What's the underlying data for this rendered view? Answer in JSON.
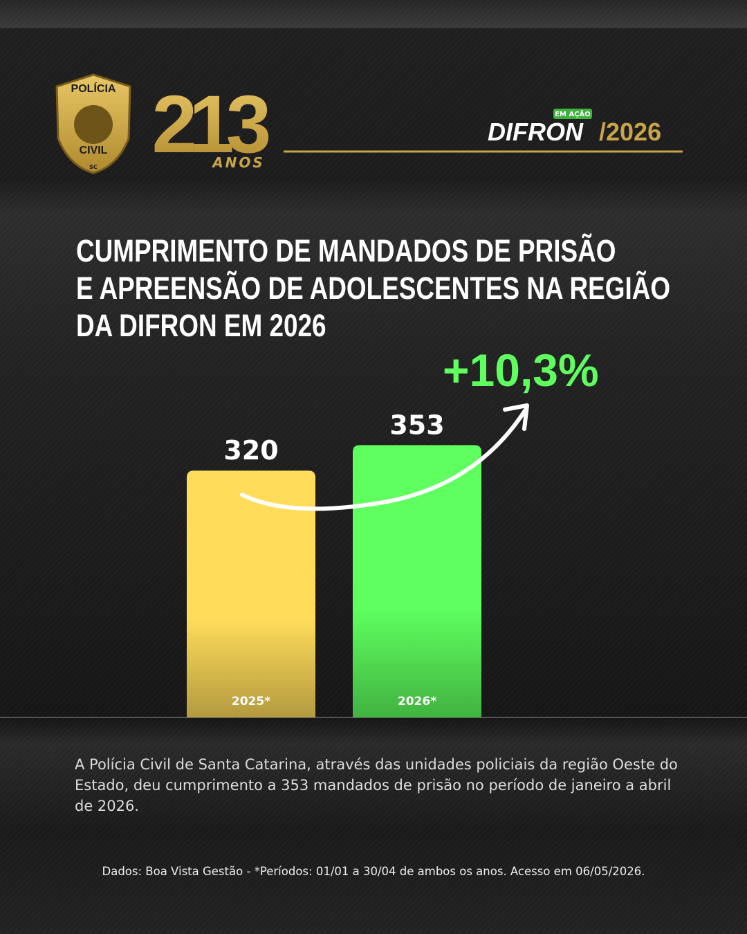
{
  "header": {
    "badge_top": "POLÍCIA",
    "badge_bottom": "CIVIL",
    "badge_state": "SC",
    "anniversary": "213",
    "anniversary_unit": "ANOS",
    "tag": "EM AÇÃO",
    "brand": "DIFRON",
    "brand_year": "/2026"
  },
  "chart_data": {
    "type": "bar",
    "title": [
      "CUMPRIMENTO DE MANDADOS DE PRISÃO",
      "E APREENSÃO DE ADOLESCENTES NA REGIÃO",
      "DA DIFRON EM 2026"
    ],
    "annotation": "+10,3%",
    "categories": [
      "2025*",
      "2026*"
    ],
    "values": [
      320,
      353
    ],
    "colors": [
      "#ffdc5a",
      "#5eff5e"
    ],
    "ylim": [
      0,
      400
    ]
  },
  "description": "A Polícia Civil de Santa Catarina, através das unidades policiais da região Oeste do Estado, deu cumprimento a 353 mandados de prisão no período de janeiro a abril de 2026.",
  "footnote": "Dados: Boa Vista Gestão - *Períodos: 01/01 a 30/04 de ambos os anos. Acesso em 06/05/2026."
}
